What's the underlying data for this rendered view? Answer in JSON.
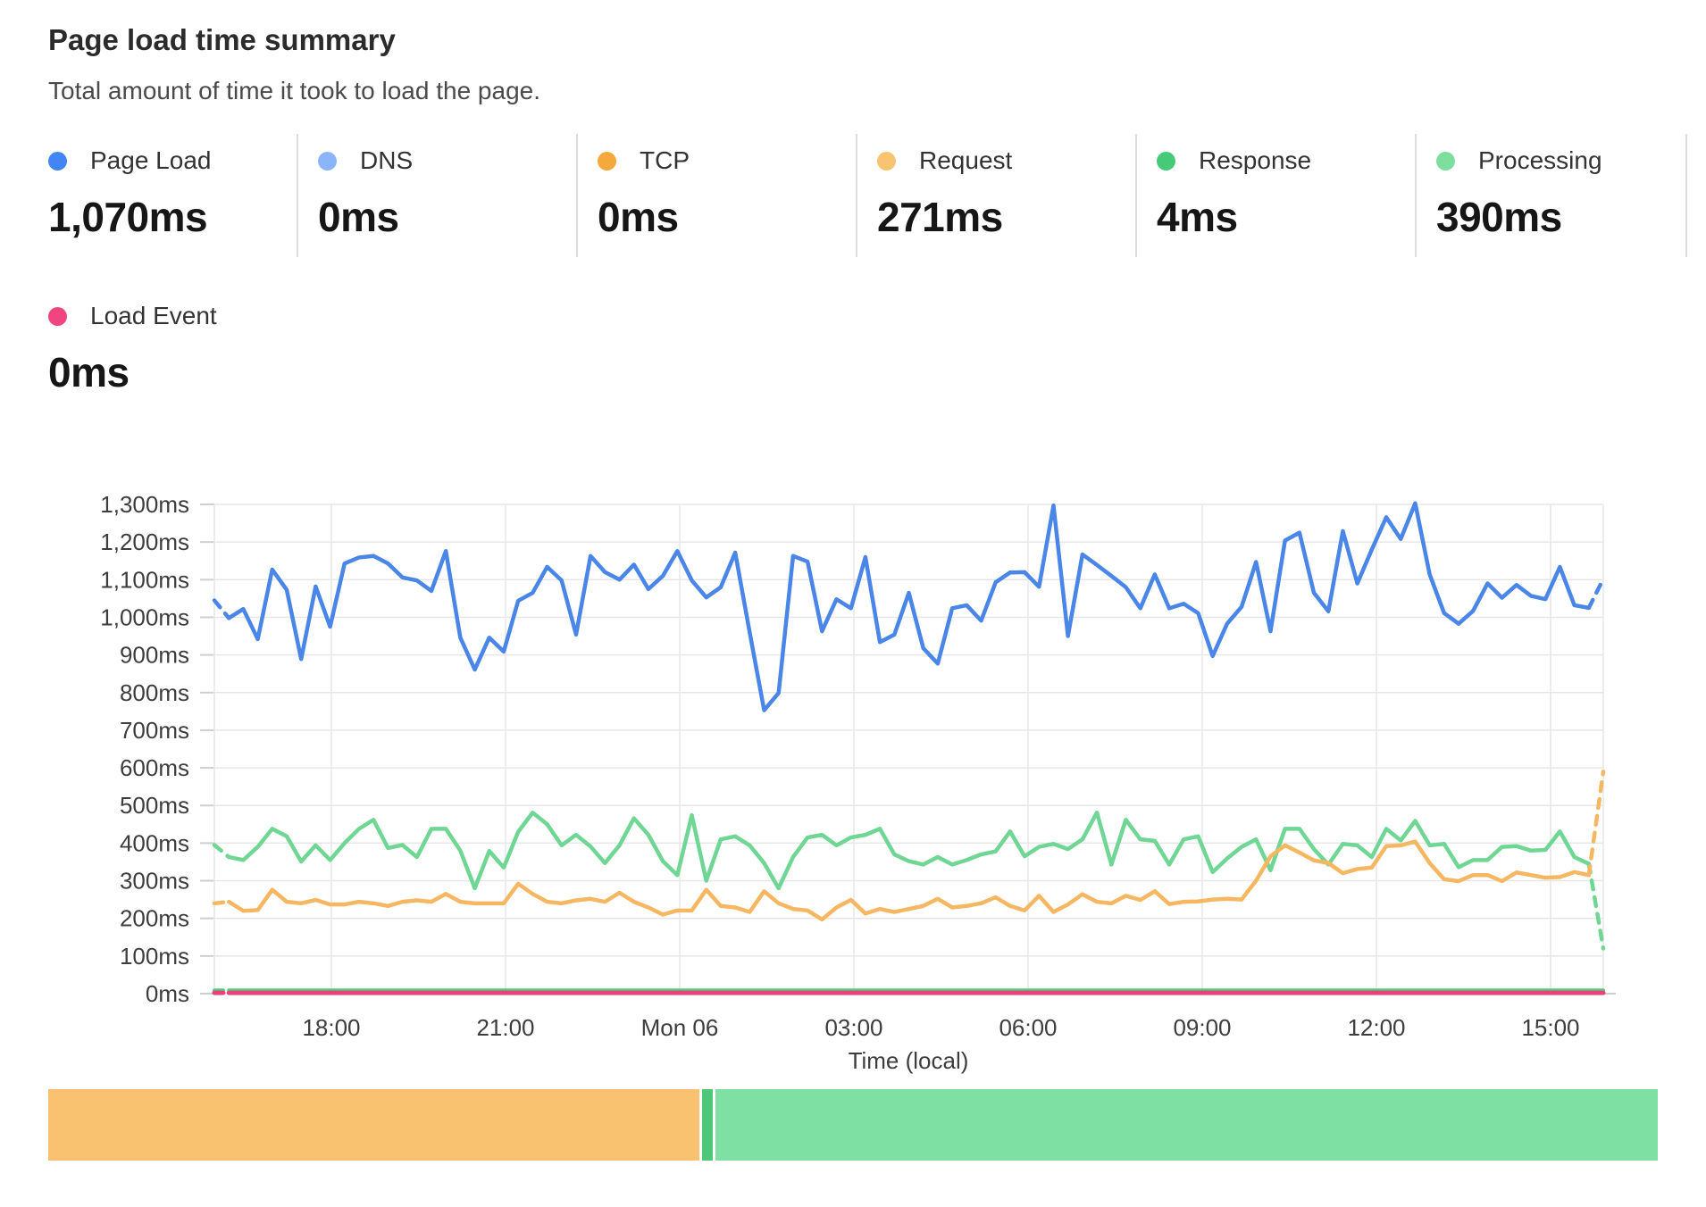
{
  "header": {
    "title": "Page load time summary",
    "subtitle": "Total amount of time it took to load the page."
  },
  "metrics": [
    {
      "label": "Page Load",
      "value": "1,070ms",
      "color": "#4285f4"
    },
    {
      "label": "DNS",
      "value": "0ms",
      "color": "#8ab6f9"
    },
    {
      "label": "TCP",
      "value": "0ms",
      "color": "#f5a93c"
    },
    {
      "label": "Request",
      "value": "271ms",
      "color": "#f8c471"
    },
    {
      "label": "Response",
      "value": "4ms",
      "color": "#46ca78"
    },
    {
      "label": "Processing",
      "value": "390ms",
      "color": "#7ddf9e"
    }
  ],
  "load_event": {
    "label": "Load Event",
    "value": "0ms",
    "color": "#f0457e"
  },
  "chart_data": {
    "type": "line",
    "title": "Page load time summary",
    "xlabel": "Time (local)",
    "ylabel": "",
    "ylim": [
      0,
      1300
    ],
    "grid": true,
    "y_tick_labels": [
      "0ms",
      "100ms",
      "200ms",
      "300ms",
      "400ms",
      "500ms",
      "600ms",
      "700ms",
      "800ms",
      "900ms",
      "1,000ms",
      "1,100ms",
      "1,200ms",
      "1,300ms"
    ],
    "x_tick_labels": [
      "18:00",
      "21:00",
      "Mon 06",
      "03:00",
      "06:00",
      "09:00",
      "12:00",
      "15:00"
    ],
    "series": [
      {
        "name": "Page Load",
        "color": "#4a86e8",
        "width": 4.5,
        "dashed_ends": true,
        "values": [
          1045,
          998,
          1022,
          942,
          1127,
          1073,
          889,
          1082,
          975,
          1143,
          1159,
          1163,
          1143,
          1106,
          1098,
          1070,
          1176,
          946,
          861,
          946,
          909,
          1044,
          1065,
          1134,
          1098,
          954,
          1163,
          1120,
          1100,
          1140,
          1075,
          1110,
          1176,
          1098,
          1053,
          1080,
          1172,
          960,
          753,
          799,
          1163,
          1148,
          963,
          1048,
          1024,
          1160,
          934,
          954,
          1065,
          918,
          877,
          1024,
          1032,
          991,
          1093,
          1119,
          1120,
          1081,
          1297,
          950,
          1167,
          1139,
          1110,
          1080,
          1024,
          1114,
          1024,
          1036,
          1011,
          897,
          983,
          1028,
          1147,
          963,
          1204,
          1225,
          1065,
          1016,
          1229,
          1090,
          1180,
          1266,
          1208,
          1303,
          1114,
          1011,
          983,
          1017,
          1090,
          1052,
          1086,
          1057,
          1048,
          1134,
          1032,
          1025,
          1102
        ]
      },
      {
        "name": "Processing",
        "color": "#70d694",
        "width": 4.5,
        "dashed_ends": true,
        "values": [
          395,
          363,
          355,
          390,
          438,
          418,
          351,
          394,
          355,
          400,
          438,
          462,
          387,
          395,
          363,
          438,
          438,
          380,
          280,
          379,
          335,
          430,
          481,
          450,
          394,
          422,
          391,
          347,
          394,
          466,
          422,
          352,
          315,
          474,
          300,
          410,
          418,
          394,
          347,
          280,
          363,
          415,
          422,
          394,
          415,
          422,
          438,
          370,
          352,
          343,
          363,
          343,
          355,
          370,
          378,
          431,
          365,
          390,
          398,
          384,
          410,
          481,
          343,
          462,
          410,
          406,
          343,
          410,
          418,
          323,
          359,
          390,
          410,
          328,
          438,
          438,
          384,
          343,
          398,
          394,
          363,
          438,
          407,
          459,
          394,
          398,
          336,
          355,
          355,
          390,
          392,
          380,
          382,
          431,
          363,
          345,
          120
        ]
      },
      {
        "name": "Request",
        "color": "#f6b763",
        "width": 4.5,
        "dashed_ends": true,
        "values": [
          240,
          244,
          220,
          222,
          276,
          244,
          240,
          249,
          237,
          237,
          244,
          240,
          233,
          244,
          248,
          244,
          265,
          244,
          240,
          240,
          240,
          292,
          265,
          244,
          240,
          248,
          252,
          244,
          268,
          244,
          229,
          210,
          221,
          221,
          276,
          233,
          229,
          217,
          272,
          240,
          225,
          221,
          197,
          229,
          249,
          213,
          225,
          217,
          225,
          233,
          252,
          229,
          233,
          240,
          256,
          233,
          221,
          260,
          217,
          237,
          264,
          244,
          240,
          260,
          249,
          272,
          238,
          244,
          245,
          250,
          252,
          250,
          300,
          365,
          394,
          375,
          354,
          347,
          320,
          331,
          335,
          392,
          394,
          404,
          347,
          304,
          299,
          315,
          315,
          299,
          322,
          315,
          308,
          310,
          323,
          315,
          590
        ]
      },
      {
        "name": "Response",
        "color": "#55cb7c",
        "width": 4,
        "dashed_start": true,
        "flat_value": 9
      },
      {
        "name": "Load Event",
        "color": "#e8417b",
        "width": 5,
        "dashed_start": true,
        "flat_value": 2
      }
    ]
  },
  "footer_bar": {
    "segments": [
      {
        "name": "request-share",
        "color": "#f8c270",
        "fraction": 0.405
      },
      {
        "name": "response-share",
        "color": "#4ec878",
        "fraction": 0.007
      },
      {
        "name": "processing-share",
        "color": "#7ee0a3",
        "fraction": 0.586
      }
    ]
  }
}
